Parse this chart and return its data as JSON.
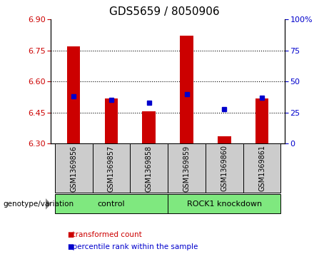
{
  "title": "GDS5659 / 8050906",
  "samples": [
    "GSM1369856",
    "GSM1369857",
    "GSM1369858",
    "GSM1369859",
    "GSM1369860",
    "GSM1369861"
  ],
  "bar_bottoms": [
    6.3,
    6.3,
    6.3,
    6.3,
    6.3,
    6.3
  ],
  "bar_tops": [
    6.77,
    6.52,
    6.455,
    6.82,
    6.335,
    6.52
  ],
  "bar_color": "#cc0000",
  "percentile_values": [
    38,
    35,
    33,
    40,
    28,
    37
  ],
  "percentile_color": "#0000cc",
  "ylim_left": [
    6.3,
    6.9
  ],
  "ylim_right": [
    0,
    100
  ],
  "yticks_left": [
    6.3,
    6.45,
    6.6,
    6.75,
    6.9
  ],
  "yticks_right": [
    0,
    25,
    50,
    75,
    100
  ],
  "grid_values": [
    6.45,
    6.6,
    6.75
  ],
  "group_labels": [
    "control",
    "ROCK1 knockdown"
  ],
  "group_ranges": [
    [
      0,
      3
    ],
    [
      3,
      6
    ]
  ],
  "sample_bg_color": "#cccccc",
  "green_color": "#7fe87f",
  "genotype_label": "genotype/variation",
  "legend_items": [
    "transformed count",
    "percentile rank within the sample"
  ],
  "legend_colors": [
    "#cc0000",
    "#0000cc"
  ],
  "title_fontsize": 11,
  "tick_fontsize": 8,
  "bar_width": 0.35
}
